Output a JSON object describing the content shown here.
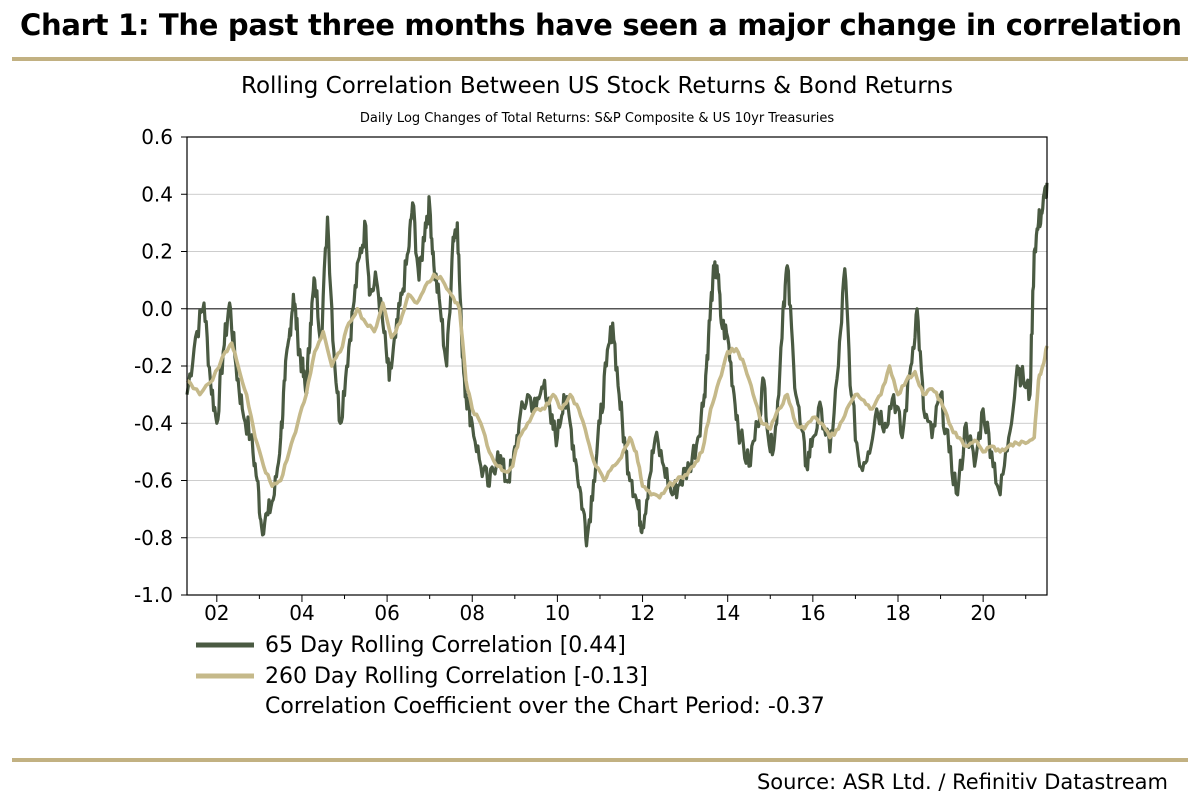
{
  "header": {
    "title": "Chart 1: The past three months have seen a major change in correlation"
  },
  "footer": {
    "source": "Source: ASR Ltd. / Refinitiv Datastream"
  },
  "colors": {
    "rule": "#c2b182",
    "series_65": "#4a5a42",
    "series_260": "#c5b98a",
    "zero_line": "#555555",
    "grid": "#bdbdbd"
  },
  "chart_data": {
    "type": "line",
    "title": "Rolling Correlation Between US Stock Returns & Bond Returns",
    "subtitle": "Daily Log Changes of Total Returns: S&P Composite & US 10yr Treasuries",
    "xlabel": "",
    "ylabel": "",
    "xlim": [
      2001.3,
      2021.5
    ],
    "ylim": [
      -1.0,
      0.6
    ],
    "grid": true,
    "legend_position": "bottom-left",
    "x_ticks": [
      2002,
      2004,
      2006,
      2008,
      2010,
      2012,
      2014,
      2016,
      2018,
      2020
    ],
    "x_tick_labels": [
      "02",
      "04",
      "06",
      "08",
      "10",
      "12",
      "14",
      "16",
      "18",
      "20"
    ],
    "y_ticks": [
      0.6,
      0.4,
      0.2,
      0.0,
      -0.2,
      -0.4,
      -0.6,
      -0.8,
      -1.0
    ],
    "y_tick_labels": [
      "0.6",
      "0.4",
      "0.2",
      "0.0",
      "-0.2",
      "-0.4",
      "-0.6",
      "-0.8",
      "-1.0"
    ],
    "legend": [
      {
        "label": "65 Day Rolling Correlation [0.44]",
        "series": 0
      },
      {
        "label": "260 Day Rolling Correlation [-0.13]",
        "series": 1
      },
      {
        "label": "Correlation Coefficient over the Chart Period: -0.37"
      }
    ],
    "series": [
      {
        "name": "65 Day Rolling Correlation",
        "last_value": 0.44,
        "points": [
          [
            2001.3,
            -0.3
          ],
          [
            2001.5,
            -0.1
          ],
          [
            2001.7,
            0.02
          ],
          [
            2001.85,
            -0.25
          ],
          [
            2002.0,
            -0.4
          ],
          [
            2002.15,
            -0.15
          ],
          [
            2002.3,
            0.02
          ],
          [
            2002.45,
            -0.2
          ],
          [
            2002.6,
            -0.35
          ],
          [
            2002.8,
            -0.45
          ],
          [
            2002.95,
            -0.6
          ],
          [
            2003.05,
            -0.76
          ],
          [
            2003.2,
            -0.72
          ],
          [
            2003.35,
            -0.65
          ],
          [
            2003.5,
            -0.45
          ],
          [
            2003.6,
            -0.25
          ],
          [
            2003.7,
            -0.1
          ],
          [
            2003.8,
            0.05
          ],
          [
            2003.9,
            -0.1
          ],
          [
            2004.0,
            -0.2
          ],
          [
            2004.1,
            -0.3
          ],
          [
            2004.2,
            -0.05
          ],
          [
            2004.3,
            0.1
          ],
          [
            2004.45,
            -0.1
          ],
          [
            2004.6,
            0.32
          ],
          [
            2004.75,
            -0.15
          ],
          [
            2004.9,
            -0.4
          ],
          [
            2005.05,
            -0.2
          ],
          [
            2005.2,
            0.0
          ],
          [
            2005.35,
            0.18
          ],
          [
            2005.5,
            0.29
          ],
          [
            2005.6,
            0.05
          ],
          [
            2005.75,
            0.1
          ],
          [
            2005.9,
            -0.05
          ],
          [
            2006.05,
            -0.25
          ],
          [
            2006.2,
            -0.1
          ],
          [
            2006.35,
            0.05
          ],
          [
            2006.5,
            0.2
          ],
          [
            2006.6,
            0.37
          ],
          [
            2006.75,
            0.1
          ],
          [
            2006.9,
            0.3
          ],
          [
            2007.0,
            0.36
          ],
          [
            2007.1,
            0.15
          ],
          [
            2007.25,
            0.0
          ],
          [
            2007.4,
            -0.2
          ],
          [
            2007.55,
            0.25
          ],
          [
            2007.65,
            0.3
          ],
          [
            2007.75,
            -0.1
          ],
          [
            2007.85,
            -0.3
          ],
          [
            2008.0,
            -0.4
          ],
          [
            2008.2,
            -0.55
          ],
          [
            2008.4,
            -0.62
          ],
          [
            2008.6,
            -0.5
          ],
          [
            2008.8,
            -0.6
          ],
          [
            2008.95,
            -0.55
          ],
          [
            2009.1,
            -0.4
          ],
          [
            2009.3,
            -0.3
          ],
          [
            2009.5,
            -0.35
          ],
          [
            2009.7,
            -0.25
          ],
          [
            2009.85,
            -0.4
          ],
          [
            2010.0,
            -0.45
          ],
          [
            2010.15,
            -0.3
          ],
          [
            2010.3,
            -0.4
          ],
          [
            2010.45,
            -0.55
          ],
          [
            2010.6,
            -0.7
          ],
          [
            2010.7,
            -0.8
          ],
          [
            2010.85,
            -0.6
          ],
          [
            2011.0,
            -0.4
          ],
          [
            2011.15,
            -0.2
          ],
          [
            2011.3,
            -0.05
          ],
          [
            2011.45,
            -0.3
          ],
          [
            2011.6,
            -0.5
          ],
          [
            2011.75,
            -0.6
          ],
          [
            2011.9,
            -0.7
          ],
          [
            2012.0,
            -0.76
          ],
          [
            2012.15,
            -0.6
          ],
          [
            2012.3,
            -0.45
          ],
          [
            2012.5,
            -0.55
          ],
          [
            2012.7,
            -0.65
          ],
          [
            2012.9,
            -0.6
          ],
          [
            2013.1,
            -0.55
          ],
          [
            2013.3,
            -0.45
          ],
          [
            2013.45,
            -0.3
          ],
          [
            2013.55,
            -0.1
          ],
          [
            2013.65,
            0.1
          ],
          [
            2013.75,
            0.15
          ],
          [
            2013.85,
            -0.05
          ],
          [
            2014.0,
            -0.1
          ],
          [
            2014.15,
            -0.3
          ],
          [
            2014.3,
            -0.45
          ],
          [
            2014.5,
            -0.55
          ],
          [
            2014.7,
            -0.4
          ],
          [
            2014.85,
            -0.25
          ],
          [
            2015.0,
            -0.5
          ],
          [
            2015.15,
            -0.4
          ],
          [
            2015.3,
            0.0
          ],
          [
            2015.4,
            0.15
          ],
          [
            2015.55,
            -0.2
          ],
          [
            2015.7,
            -0.4
          ],
          [
            2015.85,
            -0.55
          ],
          [
            2016.0,
            -0.45
          ],
          [
            2016.2,
            -0.35
          ],
          [
            2016.4,
            -0.5
          ],
          [
            2016.6,
            -0.2
          ],
          [
            2016.75,
            0.14
          ],
          [
            2016.9,
            -0.3
          ],
          [
            2017.1,
            -0.55
          ],
          [
            2017.3,
            -0.5
          ],
          [
            2017.5,
            -0.35
          ],
          [
            2017.7,
            -0.4
          ],
          [
            2017.9,
            -0.3
          ],
          [
            2018.1,
            -0.45
          ],
          [
            2018.3,
            -0.2
          ],
          [
            2018.45,
            0.0
          ],
          [
            2018.6,
            -0.35
          ],
          [
            2018.8,
            -0.45
          ],
          [
            2019.0,
            -0.3
          ],
          [
            2019.2,
            -0.5
          ],
          [
            2019.4,
            -0.65
          ],
          [
            2019.6,
            -0.4
          ],
          [
            2019.8,
            -0.55
          ],
          [
            2020.0,
            -0.35
          ],
          [
            2020.2,
            -0.5
          ],
          [
            2020.4,
            -0.65
          ],
          [
            2020.6,
            -0.45
          ],
          [
            2020.8,
            -0.2
          ],
          [
            2020.95,
            -0.25
          ],
          [
            2021.1,
            -0.3
          ],
          [
            2021.2,
            0.2
          ],
          [
            2021.3,
            0.3
          ],
          [
            2021.4,
            0.35
          ],
          [
            2021.5,
            0.44
          ]
        ]
      },
      {
        "name": "260 Day Rolling Correlation",
        "last_value": -0.13,
        "points": [
          [
            2001.3,
            -0.25
          ],
          [
            2001.6,
            -0.3
          ],
          [
            2001.9,
            -0.25
          ],
          [
            2002.2,
            -0.15
          ],
          [
            2002.35,
            -0.12
          ],
          [
            2002.5,
            -0.2
          ],
          [
            2002.7,
            -0.3
          ],
          [
            2002.9,
            -0.45
          ],
          [
            2003.1,
            -0.55
          ],
          [
            2003.3,
            -0.62
          ],
          [
            2003.5,
            -0.6
          ],
          [
            2003.7,
            -0.5
          ],
          [
            2003.9,
            -0.4
          ],
          [
            2004.1,
            -0.3
          ],
          [
            2004.3,
            -0.15
          ],
          [
            2004.5,
            -0.08
          ],
          [
            2004.7,
            -0.2
          ],
          [
            2004.9,
            -0.15
          ],
          [
            2005.1,
            -0.05
          ],
          [
            2005.3,
            0.0
          ],
          [
            2005.5,
            -0.05
          ],
          [
            2005.7,
            -0.08
          ],
          [
            2005.9,
            0.02
          ],
          [
            2006.1,
            -0.1
          ],
          [
            2006.3,
            -0.05
          ],
          [
            2006.5,
            0.05
          ],
          [
            2006.7,
            0.02
          ],
          [
            2006.9,
            0.08
          ],
          [
            2007.1,
            0.12
          ],
          [
            2007.3,
            0.1
          ],
          [
            2007.5,
            0.05
          ],
          [
            2007.7,
            0.0
          ],
          [
            2007.85,
            -0.25
          ],
          [
            2008.0,
            -0.35
          ],
          [
            2008.2,
            -0.4
          ],
          [
            2008.4,
            -0.5
          ],
          [
            2008.6,
            -0.55
          ],
          [
            2008.8,
            -0.57
          ],
          [
            2008.95,
            -0.55
          ],
          [
            2009.1,
            -0.45
          ],
          [
            2009.3,
            -0.4
          ],
          [
            2009.5,
            -0.35
          ],
          [
            2009.7,
            -0.35
          ],
          [
            2009.9,
            -0.3
          ],
          [
            2010.1,
            -0.35
          ],
          [
            2010.3,
            -0.3
          ],
          [
            2010.5,
            -0.35
          ],
          [
            2010.7,
            -0.45
          ],
          [
            2010.9,
            -0.55
          ],
          [
            2011.1,
            -0.6
          ],
          [
            2011.3,
            -0.55
          ],
          [
            2011.5,
            -0.52
          ],
          [
            2011.7,
            -0.45
          ],
          [
            2011.85,
            -0.5
          ],
          [
            2012.0,
            -0.62
          ],
          [
            2012.2,
            -0.65
          ],
          [
            2012.4,
            -0.66
          ],
          [
            2012.6,
            -0.62
          ],
          [
            2012.8,
            -0.6
          ],
          [
            2013.0,
            -0.58
          ],
          [
            2013.2,
            -0.55
          ],
          [
            2013.4,
            -0.5
          ],
          [
            2013.6,
            -0.35
          ],
          [
            2013.8,
            -0.25
          ],
          [
            2014.0,
            -0.15
          ],
          [
            2014.2,
            -0.14
          ],
          [
            2014.4,
            -0.2
          ],
          [
            2014.6,
            -0.3
          ],
          [
            2014.8,
            -0.4
          ],
          [
            2015.0,
            -0.42
          ],
          [
            2015.2,
            -0.35
          ],
          [
            2015.4,
            -0.3
          ],
          [
            2015.6,
            -0.4
          ],
          [
            2015.8,
            -0.42
          ],
          [
            2016.0,
            -0.38
          ],
          [
            2016.2,
            -0.4
          ],
          [
            2016.4,
            -0.45
          ],
          [
            2016.6,
            -0.42
          ],
          [
            2016.8,
            -0.35
          ],
          [
            2017.0,
            -0.3
          ],
          [
            2017.2,
            -0.32
          ],
          [
            2017.4,
            -0.35
          ],
          [
            2017.6,
            -0.3
          ],
          [
            2017.8,
            -0.2
          ],
          [
            2018.0,
            -0.3
          ],
          [
            2018.2,
            -0.25
          ],
          [
            2018.4,
            -0.22
          ],
          [
            2018.6,
            -0.3
          ],
          [
            2018.8,
            -0.28
          ],
          [
            2019.0,
            -0.32
          ],
          [
            2019.2,
            -0.4
          ],
          [
            2019.4,
            -0.45
          ],
          [
            2019.6,
            -0.48
          ],
          [
            2019.8,
            -0.46
          ],
          [
            2020.0,
            -0.5
          ],
          [
            2020.2,
            -0.48
          ],
          [
            2020.4,
            -0.5
          ],
          [
            2020.6,
            -0.48
          ],
          [
            2020.8,
            -0.47
          ],
          [
            2021.0,
            -0.47
          ],
          [
            2021.2,
            -0.45
          ],
          [
            2021.3,
            -0.25
          ],
          [
            2021.4,
            -0.2
          ],
          [
            2021.5,
            -0.13
          ]
        ]
      }
    ]
  }
}
